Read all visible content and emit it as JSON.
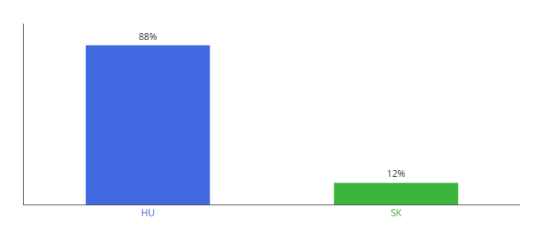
{
  "chart_data": {
    "type": "bar",
    "categories": [
      "HU",
      "SK"
    ],
    "values": [
      88,
      12
    ],
    "value_labels": [
      "88%",
      "12%"
    ],
    "data_labels": true,
    "colors": [
      "#4169e1",
      "#3cb53c"
    ],
    "ylim": [
      0,
      100
    ],
    "tick_labels": "x",
    "grid": false
  }
}
